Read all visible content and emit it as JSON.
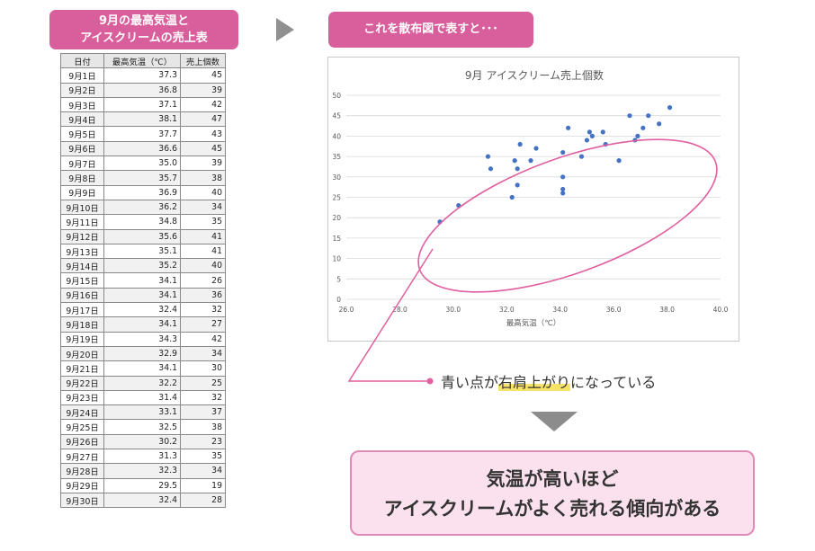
{
  "left_title": {
    "line1": "9月の最高気温と",
    "line2": "アイスクリームの売上表"
  },
  "right_title": "これを散布図で表すと･･･",
  "table": {
    "headers": [
      "日付",
      "最高気温（℃）",
      "売上個数"
    ],
    "rows": [
      [
        "9月1日",
        "37.3",
        "45"
      ],
      [
        "9月2日",
        "36.8",
        "39"
      ],
      [
        "9月3日",
        "37.1",
        "42"
      ],
      [
        "9月4日",
        "38.1",
        "47"
      ],
      [
        "9月5日",
        "37.7",
        "43"
      ],
      [
        "9月6日",
        "36.6",
        "45"
      ],
      [
        "9月7日",
        "35.0",
        "39"
      ],
      [
        "9月8日",
        "35.7",
        "38"
      ],
      [
        "9月9日",
        "36.9",
        "40"
      ],
      [
        "9月10日",
        "36.2",
        "34"
      ],
      [
        "9月11日",
        "34.8",
        "35"
      ],
      [
        "9月12日",
        "35.6",
        "41"
      ],
      [
        "9月13日",
        "35.1",
        "41"
      ],
      [
        "9月14日",
        "35.2",
        "40"
      ],
      [
        "9月15日",
        "34.1",
        "26"
      ],
      [
        "9月16日",
        "34.1",
        "36"
      ],
      [
        "9月17日",
        "32.4",
        "32"
      ],
      [
        "9月18日",
        "34.1",
        "27"
      ],
      [
        "9月19日",
        "34.3",
        "42"
      ],
      [
        "9月20日",
        "32.9",
        "34"
      ],
      [
        "9月21日",
        "34.1",
        "30"
      ],
      [
        "9月22日",
        "32.2",
        "25"
      ],
      [
        "9月23日",
        "31.4",
        "32"
      ],
      [
        "9月24日",
        "33.1",
        "37"
      ],
      [
        "9月25日",
        "32.5",
        "38"
      ],
      [
        "9月26日",
        "30.2",
        "23"
      ],
      [
        "9月27日",
        "31.3",
        "35"
      ],
      [
        "9月28日",
        "32.3",
        "34"
      ],
      [
        "9月29日",
        "29.5",
        "19"
      ],
      [
        "9月30日",
        "32.4",
        "28"
      ]
    ]
  },
  "chart_data": {
    "type": "scatter",
    "title": "9月 アイスクリーム売上個数",
    "xlabel": "最高気温（℃）",
    "ylabel": "",
    "xlim": [
      26.0,
      40.0
    ],
    "ylim": [
      0,
      50
    ],
    "x_ticks": [
      "26.0",
      "28.0",
      "30.0",
      "32.0",
      "34.0",
      "36.0",
      "38.0",
      "40.0"
    ],
    "y_ticks": [
      "0",
      "5",
      "10",
      "15",
      "20",
      "25",
      "30",
      "35",
      "40",
      "45",
      "50"
    ],
    "grid": true,
    "point_color": "#4472c4",
    "highlight_color": "#e05fa0",
    "points": [
      [
        37.3,
        45
      ],
      [
        36.8,
        39
      ],
      [
        37.1,
        42
      ],
      [
        38.1,
        47
      ],
      [
        37.7,
        43
      ],
      [
        36.6,
        45
      ],
      [
        35.0,
        39
      ],
      [
        35.7,
        38
      ],
      [
        36.9,
        40
      ],
      [
        36.2,
        34
      ],
      [
        34.8,
        35
      ],
      [
        35.6,
        41
      ],
      [
        35.1,
        41
      ],
      [
        35.2,
        40
      ],
      [
        34.1,
        26
      ],
      [
        34.1,
        36
      ],
      [
        32.4,
        32
      ],
      [
        34.1,
        27
      ],
      [
        34.3,
        42
      ],
      [
        32.9,
        34
      ],
      [
        34.1,
        30
      ],
      [
        32.2,
        25
      ],
      [
        31.4,
        32
      ],
      [
        33.1,
        37
      ],
      [
        32.5,
        38
      ],
      [
        30.2,
        23
      ],
      [
        31.3,
        35
      ],
      [
        32.3,
        34
      ],
      [
        29.5,
        19
      ],
      [
        32.4,
        28
      ]
    ]
  },
  "note": {
    "before": "青い点が",
    "highlight": "右肩上がり",
    "after": "になっている"
  },
  "conclusion": {
    "line1": "気温が高いほど",
    "line2": "アイスクリームがよく売れる傾向がある"
  }
}
